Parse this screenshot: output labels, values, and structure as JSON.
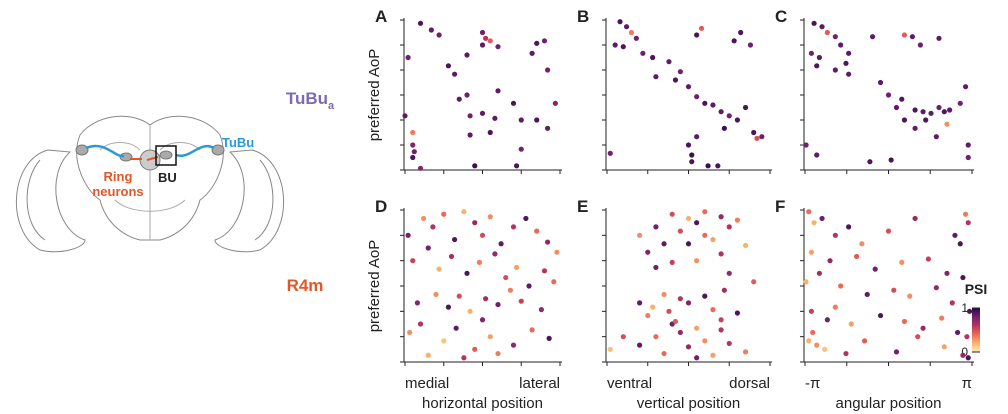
{
  "row_labels": [
    {
      "text": "TuBu",
      "subscript": "a",
      "color": "#7d6bb0"
    },
    {
      "text": "R4m",
      "color": "#e0582a"
    }
  ],
  "diagram": {
    "tubu": "TuBu",
    "bu": "BU",
    "ring_neurons": [
      "Ring",
      "neurons"
    ]
  },
  "colorbar": {
    "label": "PSI",
    "lim": [
      0,
      1
    ],
    "ticks": [
      0,
      1
    ],
    "colors": [
      "#fcefb0",
      "#f9b26e",
      "#ea6a5a",
      "#b8335a",
      "#70206f",
      "#2a0a45"
    ]
  },
  "chart_data": [
    {
      "type": "scatter",
      "label": "A",
      "ylabel": "preferred AoP",
      "xlim": [
        0,
        1
      ],
      "ylim": [
        0,
        180
      ],
      "minor_xticks": [
        0,
        0.25,
        0.5,
        0.75,
        1
      ],
      "minor_yticks": [
        0,
        30,
        60,
        90,
        120,
        150,
        180
      ],
      "x": [
        0.1,
        0.17,
        0.22,
        0.02,
        0.5,
        0.52,
        0.5,
        0.55,
        0.6,
        0.85,
        0.9,
        0.82,
        0.92,
        0.4,
        0.28,
        0.32,
        0.35,
        0.4,
        0.6,
        0.97,
        0.0,
        0.42,
        0.5,
        0.58,
        0.7,
        0.75,
        0.85,
        0.92,
        0.05,
        0.42,
        0.55,
        0.05,
        0.06,
        0.05,
        0.75,
        0.72,
        0.45,
        0.1
      ],
      "y": [
        176,
        168,
        162,
        135,
        165,
        158,
        150,
        155,
        148,
        152,
        155,
        140,
        120,
        138,
        125,
        115,
        85,
        90,
        95,
        80,
        65,
        65,
        68,
        62,
        80,
        60,
        60,
        50,
        45,
        42,
        45,
        30,
        22,
        15,
        25,
        5,
        5,
        2
      ],
      "psi": [
        0.9,
        0.85,
        0.8,
        0.8,
        0.8,
        0.6,
        0.85,
        0.45,
        0.8,
        0.9,
        0.8,
        0.85,
        0.8,
        0.85,
        0.9,
        0.85,
        0.85,
        0.8,
        0.85,
        0.75,
        0.85,
        0.8,
        0.85,
        0.85,
        0.9,
        0.85,
        0.9,
        0.85,
        0.35,
        0.85,
        0.9,
        0.75,
        0.8,
        0.9,
        0.8,
        0.9,
        0.95,
        0.75
      ]
    },
    {
      "type": "scatter",
      "label": "B",
      "xlim": [
        0,
        1
      ],
      "ylim": [
        0,
        180
      ],
      "minor_xticks": [
        0,
        0.25,
        0.5,
        0.75,
        1
      ],
      "minor_yticks": [
        0,
        30,
        60,
        90,
        120,
        150,
        180
      ],
      "x": [
        0.08,
        0.12,
        0.15,
        0.18,
        0.05,
        0.1,
        0.22,
        0.28,
        0.38,
        0.3,
        0.45,
        0.42,
        0.55,
        0.58,
        0.82,
        0.78,
        0.88,
        0.5,
        0.55,
        0.6,
        0.65,
        0.7,
        0.75,
        0.85,
        0.8,
        0.72,
        0.55,
        0.5,
        0.52,
        0.52,
        0.62,
        0.68,
        0.9,
        0.92,
        0.95,
        0.02
      ],
      "y": [
        178,
        172,
        165,
        158,
        150,
        148,
        140,
        135,
        130,
        112,
        118,
        108,
        162,
        170,
        165,
        155,
        150,
        100,
        88,
        80,
        78,
        70,
        65,
        75,
        60,
        50,
        40,
        30,
        18,
        10,
        5,
        5,
        45,
        38,
        40,
        20
      ],
      "psi": [
        0.9,
        0.85,
        0.35,
        0.8,
        0.85,
        0.9,
        0.8,
        0.9,
        0.85,
        0.85,
        0.8,
        0.9,
        0.9,
        0.45,
        0.9,
        0.9,
        0.8,
        0.85,
        0.8,
        0.9,
        0.85,
        0.85,
        0.8,
        0.9,
        0.9,
        0.95,
        0.85,
        0.9,
        0.95,
        0.9,
        0.95,
        0.9,
        0.9,
        0.5,
        0.8,
        0.8
      ]
    },
    {
      "type": "scatter",
      "label": "C",
      "xlim": [
        -3.1416,
        3.1416
      ],
      "ylim": [
        0,
        180
      ],
      "minor_xticks": [
        -3.1416,
        -1.5708,
        0,
        1.5708,
        3.1416
      ],
      "minor_yticks": [
        0,
        30,
        60,
        90,
        120,
        150,
        180
      ],
      "x": [
        -2.8,
        -2.5,
        -2.3,
        -2.0,
        -1.8,
        -1.5,
        -2.9,
        -2.6,
        -2.7,
        -2.0,
        -1.6,
        -1.5,
        -0.6,
        0.6,
        0.9,
        1.2,
        1.9,
        -0.3,
        0.0,
        0.5,
        0.3,
        1.0,
        1.3,
        1.6,
        1.9,
        2.1,
        2.3,
        2.7,
        2.9,
        0.6,
        1.0,
        1.4,
        2.2,
        1.8,
        3.0,
        3.0,
        -2.7,
        -0.7,
        0.1,
        -3.1
      ],
      "y": [
        176,
        172,
        165,
        160,
        150,
        140,
        140,
        135,
        125,
        120,
        128,
        115,
        160,
        162,
        160,
        150,
        158,
        105,
        90,
        85,
        75,
        72,
        70,
        68,
        75,
        70,
        72,
        80,
        100,
        60,
        50,
        60,
        55,
        40,
        30,
        15,
        18,
        10,
        12,
        30
      ],
      "psi": [
        0.9,
        0.85,
        0.45,
        0.8,
        0.85,
        0.85,
        0.8,
        0.85,
        0.9,
        0.85,
        0.9,
        0.85,
        0.85,
        0.45,
        0.85,
        0.8,
        0.85,
        0.85,
        0.8,
        0.9,
        0.85,
        0.9,
        0.85,
        0.85,
        0.8,
        0.9,
        0.85,
        0.8,
        0.85,
        0.9,
        0.85,
        0.9,
        0.3,
        0.85,
        0.85,
        0.8,
        0.85,
        0.9,
        0.9,
        0.8
      ]
    },
    {
      "type": "scatter",
      "label": "D",
      "ylabel": "preferred AoP",
      "xlabel": "horizontal position",
      "xlim": [
        0,
        1
      ],
      "ylim": [
        0,
        180
      ],
      "xticks": [
        {
          "value": 0,
          "label": "medial"
        },
        {
          "value": 1,
          "label": "lateral"
        }
      ],
      "minor_xticks": [
        0.25,
        0.5,
        0.75
      ],
      "minor_yticks": [
        0,
        30,
        60,
        90,
        120,
        150,
        180
      ],
      "x": [
        0.02,
        0.12,
        0.18,
        0.25,
        0.32,
        0.38,
        0.45,
        0.5,
        0.55,
        0.62,
        0.7,
        0.78,
        0.85,
        0.92,
        0.98,
        0.05,
        0.15,
        0.22,
        0.3,
        0.4,
        0.48,
        0.58,
        0.65,
        0.72,
        0.8,
        0.9,
        0.96,
        0.08,
        0.2,
        0.28,
        0.35,
        0.42,
        0.52,
        0.6,
        0.68,
        0.75,
        0.88,
        0.03,
        0.1,
        0.25,
        0.33,
        0.45,
        0.55,
        0.7,
        0.82,
        0.93,
        0.15,
        0.38,
        0.6,
        0.5
      ],
      "y": [
        150,
        170,
        160,
        175,
        145,
        178,
        165,
        150,
        172,
        140,
        160,
        170,
        155,
        142,
        130,
        120,
        135,
        110,
        125,
        105,
        118,
        128,
        100,
        112,
        90,
        108,
        95,
        70,
        80,
        65,
        78,
        60,
        75,
        68,
        85,
        72,
        62,
        35,
        45,
        25,
        40,
        15,
        30,
        20,
        38,
        28,
        8,
        5,
        10,
        50
      ],
      "psi": [
        0.8,
        0.3,
        0.6,
        0.4,
        0.9,
        0.2,
        0.7,
        0.5,
        0.3,
        0.85,
        0.6,
        0.9,
        0.4,
        0.7,
        0.3,
        0.55,
        0.8,
        0.2,
        0.65,
        0.9,
        0.35,
        0.7,
        0.5,
        0.25,
        0.85,
        0.6,
        0.4,
        0.75,
        0.3,
        0.9,
        0.5,
        0.2,
        0.65,
        0.8,
        0.35,
        0.55,
        0.7,
        0.3,
        0.6,
        0.15,
        0.85,
        0.45,
        0.25,
        0.7,
        0.4,
        0.9,
        0.2,
        0.6,
        0.35,
        0.75
      ]
    },
    {
      "type": "scatter",
      "label": "E",
      "xlabel": "vertical position",
      "xlim": [
        0,
        1
      ],
      "ylim": [
        0,
        180
      ],
      "xticks": [
        {
          "value": 0,
          "label": "ventral"
        },
        {
          "value": 1,
          "label": "dorsal"
        }
      ],
      "minor_xticks": [
        0.25,
        0.5,
        0.75
      ],
      "minor_yticks": [
        0,
        30,
        60,
        90,
        120,
        150,
        180
      ],
      "x": [
        0.2,
        0.3,
        0.4,
        0.5,
        0.55,
        0.6,
        0.7,
        0.75,
        0.8,
        0.35,
        0.45,
        0.65,
        0.25,
        0.5,
        0.6,
        0.7,
        0.85,
        0.3,
        0.4,
        0.55,
        0.75,
        0.9,
        0.2,
        0.35,
        0.45,
        0.6,
        0.28,
        0.38,
        0.5,
        0.65,
        0.72,
        0.25,
        0.4,
        0.55,
        0.7,
        0.8,
        0.3,
        0.45,
        0.6,
        0.7,
        0.02,
        0.1,
        0.2,
        0.35,
        0.5,
        0.65,
        0.75,
        0.85,
        0.55,
        0.42
      ],
      "y": [
        150,
        160,
        175,
        170,
        165,
        178,
        172,
        160,
        168,
        140,
        155,
        145,
        130,
        140,
        150,
        128,
        138,
        112,
        118,
        120,
        105,
        95,
        70,
        80,
        75,
        78,
        65,
        60,
        70,
        62,
        85,
        55,
        45,
        40,
        50,
        58,
        30,
        35,
        25,
        38,
        15,
        30,
        20,
        10,
        18,
        8,
        22,
        12,
        5,
        48
      ],
      "psi": [
        0.3,
        0.8,
        0.5,
        0.2,
        0.9,
        0.4,
        0.7,
        0.6,
        0.35,
        0.85,
        0.5,
        0.25,
        0.75,
        0.9,
        0.4,
        0.6,
        0.2,
        0.8,
        0.55,
        0.3,
        0.7,
        0.45,
        0.85,
        0.3,
        0.6,
        0.9,
        0.2,
        0.5,
        0.75,
        0.4,
        0.65,
        0.35,
        0.8,
        0.25,
        0.55,
        0.9,
        0.4,
        0.7,
        0.3,
        0.6,
        0.15,
        0.5,
        0.85,
        0.4,
        0.7,
        0.25,
        0.6,
        0.35,
        0.8,
        0.45
      ]
    },
    {
      "type": "scatter",
      "label": "F",
      "xlabel": "angular position",
      "xlim": [
        -3.1416,
        3.1416
      ],
      "ylim": [
        0,
        180
      ],
      "xticks": [
        {
          "value": -3.1416,
          "label": "-π"
        },
        {
          "value": 3.1416,
          "label": "π"
        }
      ],
      "minor_xticks": [
        -1.5708,
        0,
        1.5708
      ],
      "minor_yticks": [
        0,
        30,
        60,
        90,
        120,
        150,
        180
      ],
      "x": [
        -3.0,
        -2.8,
        -2.5,
        -2.0,
        -1.5,
        -1.0,
        0.0,
        1.0,
        2.5,
        2.9,
        3.0,
        2.7,
        -2.9,
        -2.2,
        -1.2,
        -0.5,
        0.5,
        1.5,
        2.2,
        2.8,
        -3.1,
        -2.6,
        -1.8,
        -0.8,
        0.2,
        0.8,
        1.8,
        2.4,
        3.05,
        -2.0,
        -2.9,
        -2.3,
        -1.4,
        -0.3,
        0.6,
        1.3,
        2.0,
        2.6,
        2.95,
        -3.0,
        -2.7,
        -2.4,
        -1.6,
        -0.9,
        0.3,
        1.1,
        2.1,
        2.8,
        3.0,
        -2.85
      ],
      "y": [
        178,
        165,
        170,
        150,
        160,
        140,
        155,
        170,
        150,
        175,
        165,
        140,
        130,
        120,
        125,
        110,
        118,
        122,
        105,
        100,
        95,
        105,
        90,
        80,
        85,
        78,
        88,
        70,
        60,
        65,
        60,
        50,
        45,
        55,
        48,
        40,
        52,
        35,
        30,
        25,
        20,
        15,
        10,
        25,
        12,
        30,
        18,
        8,
        5,
        35
      ],
      "psi": [
        0.4,
        0.2,
        0.8,
        0.6,
        0.9,
        0.3,
        0.5,
        0.7,
        0.85,
        0.35,
        0.6,
        0.9,
        0.25,
        0.7,
        0.45,
        0.8,
        0.3,
        0.55,
        0.75,
        0.9,
        0.2,
        0.65,
        0.4,
        0.85,
        0.5,
        0.3,
        0.7,
        0.6,
        0.9,
        0.35,
        0.55,
        0.8,
        0.25,
        0.9,
        0.4,
        0.7,
        0.35,
        0.85,
        0.6,
        0.2,
        0.3,
        0.15,
        0.6,
        0.45,
        0.8,
        0.5,
        0.25,
        0.7,
        0.9,
        0.4
      ]
    }
  ]
}
